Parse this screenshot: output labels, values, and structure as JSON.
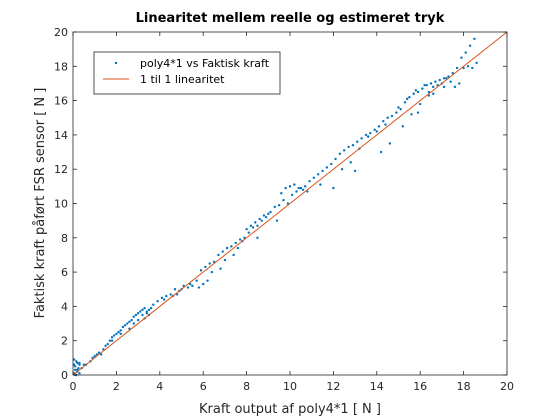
{
  "chart_data": {
    "type": "scatter",
    "title": "Linearitet mellem reelle og estimeret tryk",
    "xlabel": "Kraft output af poly4*1 [ N ]",
    "ylabel": "Faktisk kraft påført FSR sensor [ N ]",
    "xlim": [
      0,
      20
    ],
    "ylim": [
      0,
      20
    ],
    "xticks": [
      0,
      2,
      4,
      6,
      8,
      10,
      12,
      14,
      16,
      18,
      20
    ],
    "yticks": [
      0,
      2,
      4,
      6,
      8,
      10,
      12,
      14,
      16,
      18,
      20
    ],
    "grid": false,
    "legend_position": "top-left",
    "series": [
      {
        "name": "poly4*1 vs Faktisk kraft",
        "kind": "points",
        "color": "#0072BD",
        "x": [
          0.05,
          0.1,
          0.15,
          0.2,
          0.1,
          0.3,
          0.05,
          0.2,
          0.4,
          0.5,
          0.3,
          0.6,
          0.8,
          0.9,
          1.0,
          1.1,
          1.2,
          1.3,
          1.4,
          1.5,
          1.6,
          1.7,
          1.8,
          1.9,
          2.0,
          2.1,
          2.2,
          2.3,
          2.4,
          2.5,
          2.6,
          2.7,
          2.8,
          2.9,
          3.0,
          3.1,
          3.2,
          3.3,
          3.4,
          3.5,
          3.6,
          3.2,
          3.0,
          2.8,
          3.4,
          3.7,
          3.9,
          4.1,
          4.3,
          4.5,
          4.7,
          4.9,
          5.1,
          5.3,
          5.5,
          5.7,
          5.9,
          6.1,
          6.3,
          6.5,
          6.7,
          6.9,
          7.1,
          7.3,
          7.5,
          7.7,
          7.9,
          8.1,
          8.3,
          8.5,
          8.7,
          8.9,
          9.1,
          9.3,
          9.5,
          9.7,
          9.9,
          10.1,
          10.3,
          10.5,
          10.7,
          10.9,
          11.1,
          11.3,
          11.5,
          11.7,
          11.9,
          12.1,
          12.3,
          12.5,
          12.7,
          12.9,
          13.1,
          13.3,
          13.5,
          13.7,
          13.9,
          14.1,
          14.3,
          14.5,
          14.7,
          14.9,
          15.1,
          15.3,
          15.5,
          15.7,
          15.9,
          16.1,
          16.3,
          16.5,
          16.7,
          16.9,
          17.1,
          17.3,
          17.5,
          17.7,
          17.9,
          18.1,
          18.3,
          18.5,
          9.6,
          9.8,
          10.0,
          10.2,
          10.4,
          10.6,
          15.0,
          15.4,
          15.8,
          16.2,
          16.6,
          17.0,
          17.2,
          16.8,
          16.4,
          8.0,
          8.2,
          8.4,
          8.6,
          8.8,
          12.4,
          12.8,
          13.2,
          13.6,
          14.0,
          14.4,
          5.8,
          6.0,
          6.2,
          6.4,
          7.0,
          7.4,
          7.8,
          17.6,
          17.8,
          18.0,
          18.2,
          18.4,
          18.6,
          0.1,
          0.2,
          0.3,
          0.15,
          0.05,
          0.25,
          1.8,
          2.2,
          2.6,
          3.3,
          3.5,
          10.8,
          11.4,
          12.0,
          13.0,
          14.2,
          14.6,
          15.2,
          15.6,
          16.0,
          16.4,
          17.1,
          17.4,
          16.6,
          15.9,
          9.0,
          9.4,
          8.5,
          7.6,
          6.8,
          4.8,
          5.0,
          5.4,
          4.2,
          4.6
        ],
        "y": [
          0.1,
          0.5,
          0.8,
          0.3,
          0.0,
          0.6,
          0.9,
          0.2,
          0.4,
          0.6,
          0.7,
          0.6,
          0.8,
          1.0,
          1.1,
          1.2,
          1.3,
          1.2,
          1.5,
          1.7,
          1.8,
          2.0,
          2.2,
          2.3,
          2.4,
          2.5,
          2.6,
          2.8,
          2.9,
          3.0,
          3.1,
          3.2,
          3.4,
          3.5,
          3.6,
          3.7,
          3.8,
          3.9,
          3.6,
          3.8,
          3.9,
          3.5,
          3.2,
          3.0,
          3.7,
          4.1,
          4.3,
          4.5,
          4.6,
          4.7,
          5.0,
          4.9,
          5.2,
          5.1,
          5.2,
          5.5,
          6.1,
          6.3,
          6.5,
          6.6,
          7.0,
          7.2,
          7.4,
          7.5,
          7.7,
          7.9,
          8.0,
          8.3,
          8.6,
          8.7,
          9.0,
          9.2,
          9.5,
          9.8,
          9.9,
          10.2,
          10.0,
          10.5,
          10.7,
          10.9,
          11.0,
          11.3,
          11.5,
          11.7,
          11.9,
          12.1,
          12.3,
          12.6,
          12.9,
          13.1,
          13.3,
          13.4,
          13.6,
          13.8,
          14.0,
          14.1,
          14.3,
          14.5,
          14.8,
          15.0,
          15.1,
          15.3,
          15.5,
          15.9,
          16.2,
          16.4,
          16.5,
          16.7,
          16.9,
          17.0,
          17.1,
          17.2,
          17.3,
          17.4,
          17.6,
          17.9,
          18.5,
          18.8,
          19.2,
          19.6,
          10.6,
          10.9,
          11.0,
          11.1,
          10.9,
          10.8,
          15.6,
          16.1,
          16.6,
          16.9,
          16.8,
          17.0,
          17.3,
          16.9,
          16.5,
          8.5,
          8.7,
          8.9,
          9.1,
          9.3,
          12.0,
          12.4,
          13.2,
          13.9,
          14.2,
          14.6,
          5.1,
          5.3,
          5.5,
          6.0,
          6.7,
          7.0,
          7.8,
          16.8,
          17.0,
          17.9,
          18.0,
          17.9,
          18.2,
          0.3,
          0.7,
          0.1,
          0.0,
          0.6,
          0.4,
          2.0,
          2.4,
          2.7,
          3.3,
          3.5,
          10.7,
          11.1,
          10.9,
          11.9,
          13.0,
          13.5,
          14.5,
          15.2,
          15.8,
          16.3,
          16.8,
          17.1,
          16.4,
          15.3,
          9.4,
          9.0,
          8.0,
          7.4,
          6.2,
          4.7,
          5.0,
          5.3,
          4.4,
          4.6
        ]
      },
      {
        "name": "1 til 1 linearitet",
        "kind": "line",
        "color": "#D95319",
        "x": [
          0,
          20
        ],
        "y": [
          0,
          20
        ]
      }
    ]
  }
}
